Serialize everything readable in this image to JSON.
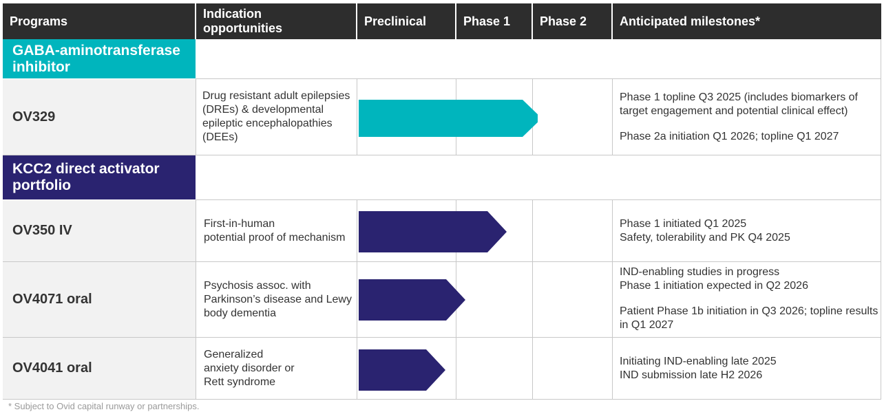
{
  "header": {
    "programs": "Programs",
    "indication": "Indication opportunities",
    "preclinical": "Preclinical",
    "phase1": "Phase 1",
    "phase2": "Phase 2",
    "milestones": "Anticipated milestones*"
  },
  "groups": [
    {
      "title": "GABA-aminotransferase inhibitor",
      "color": "#00b5bd"
    },
    {
      "title": "KCC2 direct activator portfolio",
      "color": "#2a2370"
    }
  ],
  "programs": [
    {
      "name": "OV329",
      "indication": [
        "Drug resistant adult epilepsies",
        "(DREs) & developmental",
        "epileptic encephalopathies",
        "(DEEs)"
      ],
      "milestones": [
        [
          "Phase 1 topline Q3 2025 (includes biomarkers of",
          "target engagement and potential clinical effect)"
        ],
        [
          "Phase 2a initiation Q1 2026; topline Q1 2027"
        ]
      ],
      "stage_progress": 0.72,
      "color": "#00b5bd"
    },
    {
      "name": "OV350 IV",
      "indication": [
        "First-in-human",
        "potential proof of mechanism"
      ],
      "milestones": [
        [
          "Phase 1 initiated Q1 2025",
          "Safety, tolerability and PK Q4 2025"
        ]
      ],
      "stage_progress": 0.58,
      "color": "#2a2370"
    },
    {
      "name": "OV4071 oral",
      "indication": [
        "Psychosis assoc. with",
        "Parkinson’s disease and Lewy",
        "body dementia"
      ],
      "milestones": [
        [
          "IND-enabling studies in progress",
          "Phase 1 initiation expected in Q2 2026"
        ],
        [
          "Patient Phase 1b initiation in Q3 2026; topline results",
          "in Q1 2027"
        ]
      ],
      "stage_progress": 0.42,
      "color": "#2a2370"
    },
    {
      "name": "OV4041 oral",
      "indication": [
        "Generalized",
        "anxiety disorder or",
        "Rett syndrome"
      ],
      "milestones": [
        [
          "Initiating IND-enabling late 2025",
          "IND submission late H2 2026"
        ]
      ],
      "stage_progress": 0.34,
      "color": "#2a2370"
    }
  ],
  "footnote": "* Subject to Ovid capital runway or partnerships."
}
